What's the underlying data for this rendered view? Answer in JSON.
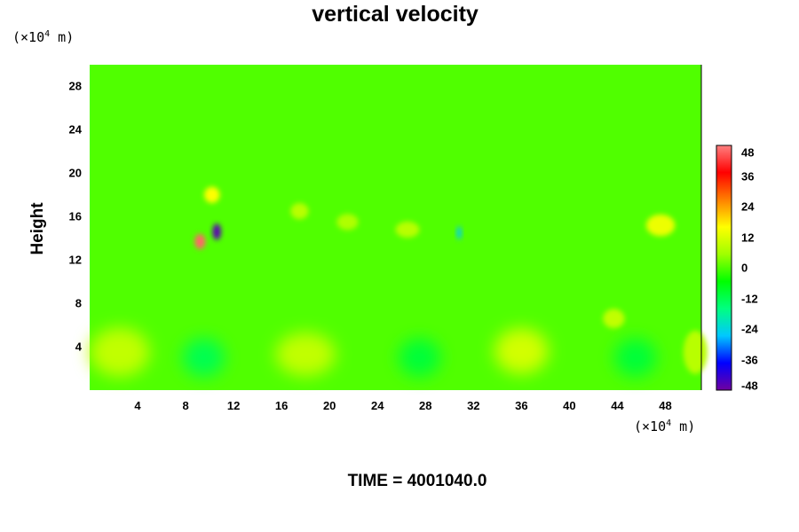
{
  "chart_data": {
    "type": "heatmap",
    "title": "vertical velocity",
    "ylabel": "Height",
    "xlabel": "",
    "x_unit_prefix": "(×10",
    "x_unit_exp": "4",
    "x_unit_suffix": " m)",
    "y_unit_prefix": "(×10",
    "y_unit_exp": "4",
    "y_unit_suffix": " m)",
    "xlim": [
      0,
      51
    ],
    "ylim": [
      0,
      30
    ],
    "x_ticks": [
      "4",
      "8",
      "12",
      "16",
      "20",
      "24",
      "28",
      "32",
      "36",
      "40",
      "44",
      "48"
    ],
    "y_ticks": [
      "4",
      "8",
      "12",
      "16",
      "20",
      "24",
      "28"
    ],
    "colorbar": {
      "range": [
        -48,
        48
      ],
      "ticks": [
        "48",
        "36",
        "24",
        "12",
        "0",
        "-12",
        "-24",
        "-36",
        "-48"
      ],
      "colors": [
        "#7000a0",
        "#0000ff",
        "#00c8ff",
        "#00ff80",
        "#00ff00",
        "#a0ff00",
        "#ffff00",
        "#ff8000",
        "#ff0000",
        "#ff8080"
      ]
    },
    "background_value": 0,
    "features": [
      {
        "x": 9.2,
        "y": 13.7,
        "w": 0.9,
        "h": 1.4,
        "value": 46
      },
      {
        "x": 10.6,
        "y": 14.6,
        "w": 0.7,
        "h": 1.5,
        "value": -46
      },
      {
        "x": 10.2,
        "y": 18.0,
        "w": 1.3,
        "h": 1.5,
        "value": 16
      },
      {
        "x": 30.8,
        "y": 14.5,
        "w": 0.4,
        "h": 1.2,
        "value": -26
      },
      {
        "x": 47.6,
        "y": 15.2,
        "w": 2.4,
        "h": 2.0,
        "value": 14
      },
      {
        "x": 43.7,
        "y": 6.6,
        "w": 1.8,
        "h": 1.8,
        "value": 9
      },
      {
        "x": 36.0,
        "y": 3.6,
        "w": 4.5,
        "h": 4.2,
        "value": 11
      },
      {
        "x": 18.0,
        "y": 3.3,
        "w": 5.0,
        "h": 4.0,
        "value": 9
      },
      {
        "x": 2.5,
        "y": 3.5,
        "w": 5.0,
        "h": 4.5,
        "value": 9
      },
      {
        "x": 50.5,
        "y": 3.5,
        "w": 2.0,
        "h": 4.0,
        "value": 8
      },
      {
        "x": 9.5,
        "y": 3.0,
        "w": 3.5,
        "h": 3.5,
        "value": -12
      },
      {
        "x": 27.5,
        "y": 3.0,
        "w": 3.5,
        "h": 3.5,
        "value": -10
      },
      {
        "x": 45.5,
        "y": 3.0,
        "w": 3.5,
        "h": 3.5,
        "value": -10
      },
      {
        "x": 17.5,
        "y": 16.5,
        "w": 1.5,
        "h": 1.5,
        "value": 8
      },
      {
        "x": 26.5,
        "y": 14.8,
        "w": 2.0,
        "h": 1.5,
        "value": 8
      },
      {
        "x": 21.5,
        "y": 15.5,
        "w": 1.8,
        "h": 1.5,
        "value": 7
      }
    ],
    "footer": "TIME = 4001040.0"
  }
}
